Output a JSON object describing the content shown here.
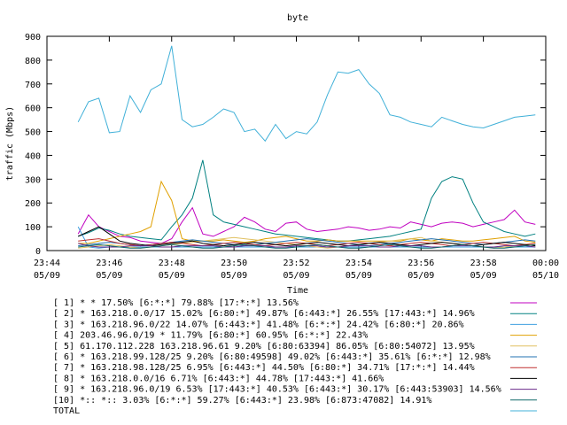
{
  "chart_data": {
    "type": "line",
    "title": "byte",
    "xlabel": "Time",
    "ylabel": "traffic (Mbps)",
    "ylim": [
      0,
      900
    ],
    "xlim": [
      "05/09 23:44",
      "05/10 00:00"
    ],
    "yticks": [
      "0",
      "100",
      "200",
      "300",
      "400",
      "500",
      "600",
      "700",
      "800",
      "900"
    ],
    "xticks": [
      {
        "time": "23:44",
        "date": "05/09"
      },
      {
        "time": "23:46",
        "date": "05/09"
      },
      {
        "time": "23:48",
        "date": "05/09"
      },
      {
        "time": "23:50",
        "date": "05/09"
      },
      {
        "time": "23:52",
        "date": "05/09"
      },
      {
        "time": "23:54",
        "date": "05/09"
      },
      {
        "time": "23:56",
        "date": "05/09"
      },
      {
        "time": "23:58",
        "date": "05/09"
      },
      {
        "time": "00:00",
        "date": "05/10"
      }
    ],
    "x": [
      "23:45:00",
      "23:45:20",
      "23:45:40",
      "23:46:00",
      "23:46:20",
      "23:46:40",
      "23:47:00",
      "23:47:20",
      "23:47:40",
      "23:48:00",
      "23:48:20",
      "23:48:40",
      "23:49:00",
      "23:49:20",
      "23:49:40",
      "23:50:00",
      "23:50:20",
      "23:50:40",
      "23:51:00",
      "23:51:20",
      "23:51:40",
      "23:52:00",
      "23:52:20",
      "23:52:40",
      "23:53:00",
      "23:53:20",
      "23:53:40",
      "23:54:00",
      "23:54:20",
      "23:54:40",
      "23:55:00",
      "23:55:20",
      "23:55:40",
      "23:56:00",
      "23:56:20",
      "23:56:40",
      "23:57:00",
      "23:57:20",
      "23:57:40",
      "23:58:00",
      "23:58:20",
      "23:58:40",
      "23:59:00",
      "23:59:20",
      "23:59:40"
    ],
    "grid": false,
    "legend_position": "bottom",
    "series": [
      {
        "name": "[ 1] * * 17.50%  [6:*:*] 79.88% [17:*:*] 13.56%",
        "color": "#c000c0",
        "values": [
          70,
          150,
          100,
          80,
          60,
          55,
          40,
          35,
          30,
          50,
          120,
          180,
          70,
          60,
          80,
          100,
          140,
          120,
          90,
          80,
          115,
          120,
          90,
          80,
          85,
          90,
          100,
          95,
          85,
          90,
          100,
          95,
          120,
          110,
          100,
          115,
          120,
          115,
          100,
          110,
          120,
          130,
          170,
          120,
          110
        ]
      },
      {
        "name": "[ 2] * 163.218.0.0/17 15.02%  [6:80:*] 49.87% [6:443:*] 26.55% [17:443:*] 14.96%",
        "color": "#008080",
        "values": [
          60,
          75,
          95,
          85,
          70,
          60,
          55,
          50,
          45,
          100,
          150,
          220,
          380,
          150,
          120,
          110,
          100,
          90,
          80,
          70,
          65,
          60,
          55,
          50,
          45,
          40,
          40,
          45,
          50,
          55,
          60,
          70,
          80,
          90,
          220,
          290,
          310,
          300,
          200,
          120,
          100,
          80,
          70,
          60,
          70
        ]
      },
      {
        "name": "[ 3] * 163.218.96.0/22 14.07%  [6:443:*] 41.48% [6:*:*] 24.42% [6:80:*] 20.86%",
        "color": "#40a0e0",
        "values": [
          100,
          15,
          10,
          15,
          15,
          15,
          15,
          15,
          15,
          15,
          15,
          15,
          15,
          15,
          15,
          15,
          15,
          15,
          15,
          15,
          15,
          15,
          15,
          15,
          15,
          15,
          15,
          15,
          15,
          15,
          15,
          15,
          15,
          15,
          15,
          15,
          15,
          15,
          15,
          15,
          15,
          15,
          15,
          15,
          15
        ]
      },
      {
        "name": "[ 4] 203.46.96.0/19 * 11.79%  [6:80:*] 60.95% [6:*:*] 22.43%",
        "color": "#e0a000",
        "values": [
          30,
          30,
          40,
          50,
          60,
          70,
          80,
          100,
          290,
          210,
          50,
          40,
          40,
          40,
          45,
          40,
          35,
          40,
          50,
          55,
          60,
          50,
          40,
          40,
          45,
          40,
          40,
          40,
          40,
          40,
          40,
          40,
          50,
          45,
          40,
          50,
          45,
          40,
          40,
          45,
          50,
          55,
          60,
          40,
          35
        ]
      },
      {
        "name": "[ 5] 61.170.112.228 163.218.96.61 9.20%  [6:80:63394] 86.05% [6:80:54072] 13.95%",
        "color": "#e0c060",
        "values": [
          10,
          15,
          20,
          25,
          20,
          15,
          10,
          15,
          20,
          25,
          30,
          35,
          40,
          45,
          50,
          55,
          50,
          45,
          40,
          35,
          30,
          25,
          20,
          15,
          10,
          15,
          20,
          25,
          30,
          35,
          40,
          45,
          50,
          55,
          40,
          35,
          30,
          25,
          20,
          15,
          10,
          15,
          20,
          25,
          30
        ]
      },
      {
        "name": "[ 6] * 163.218.99.128/25 9.20%  [6:80:49598] 49.02% [6:443:*] 35.61% [6:*:*] 12.98%",
        "color": "#2070b0",
        "values": [
          20,
          25,
          30,
          35,
          30,
          25,
          20,
          25,
          30,
          35,
          40,
          45,
          40,
          35,
          30,
          25,
          20,
          25,
          30,
          35,
          40,
          45,
          50,
          45,
          40,
          35,
          30,
          25,
          20,
          25,
          30,
          35,
          40,
          45,
          50,
          45,
          40,
          35,
          30,
          25,
          30,
          35,
          40,
          45,
          40
        ]
      },
      {
        "name": "[ 7] * 163.218.98.128/25 6.95%  [6:443:*] 44.50% [6:80:*] 34.71% [17:*:*] 14.44%",
        "color": "#c03030",
        "values": [
          40,
          45,
          50,
          40,
          30,
          25,
          20,
          25,
          30,
          35,
          30,
          25,
          20,
          25,
          30,
          35,
          30,
          25,
          20,
          25,
          30,
          35,
          30,
          25,
          20,
          25,
          30,
          35,
          30,
          25,
          20,
          25,
          30,
          35,
          30,
          25,
          20,
          25,
          30,
          35,
          30,
          25,
          20,
          25,
          30
        ]
      },
      {
        "name": "[ 8] * 163.218.0.0/16 6.71%  [6:443:*] 44.78% [17:443:*] 41.66%",
        "color": "#000000",
        "values": [
          60,
          80,
          100,
          70,
          40,
          30,
          25,
          20,
          25,
          30,
          35,
          40,
          30,
          25,
          20,
          25,
          30,
          35,
          30,
          25,
          20,
          25,
          30,
          35,
          30,
          25,
          20,
          25,
          30,
          35,
          30,
          25,
          20,
          25,
          30,
          35,
          30,
          25,
          20,
          25,
          30,
          35,
          30,
          25,
          20
        ]
      },
      {
        "name": "[ 9] * 163.218.96.0/19 6.53%  [17:443:*] 40.53% [6:443:*] 30.17% [6:443:53903] 14.56%",
        "color": "#6a2a8a",
        "values": [
          30,
          20,
          15,
          15,
          15,
          20,
          20,
          20,
          15,
          15,
          20,
          20,
          20,
          20,
          15,
          15,
          20,
          20,
          20,
          15,
          15,
          20,
          20,
          20,
          15,
          15,
          20,
          20,
          20,
          15,
          15,
          20,
          20,
          20,
          15,
          15,
          20,
          20,
          20,
          15,
          15,
          20,
          20,
          20,
          15
        ]
      },
      {
        "name": "[10] *:: *:: 3.03%  [6:*:*] 59.27% [6:443:*] 23.98% [6:873:47082] 14.91%",
        "color": "#106a6a",
        "values": [
          15,
          20,
          25,
          20,
          15,
          10,
          10,
          15,
          20,
          25,
          20,
          15,
          10,
          10,
          15,
          20,
          25,
          20,
          15,
          10,
          10,
          15,
          20,
          25,
          20,
          15,
          10,
          10,
          15,
          20,
          25,
          20,
          15,
          10,
          10,
          15,
          20,
          25,
          20,
          15,
          10,
          10,
          15,
          20,
          25
        ]
      },
      {
        "name": "TOTAL",
        "color": "#40b0d8",
        "values": [
          540,
          625,
          640,
          495,
          500,
          650,
          580,
          675,
          700,
          860,
          550,
          520,
          530,
          560,
          595,
          580,
          500,
          510,
          460,
          530,
          470,
          500,
          490,
          540,
          655,
          750,
          745,
          760,
          700,
          660,
          570,
          560,
          540,
          530,
          520,
          560,
          545,
          530,
          520,
          515,
          530,
          545,
          560,
          565,
          570
        ]
      }
    ]
  }
}
